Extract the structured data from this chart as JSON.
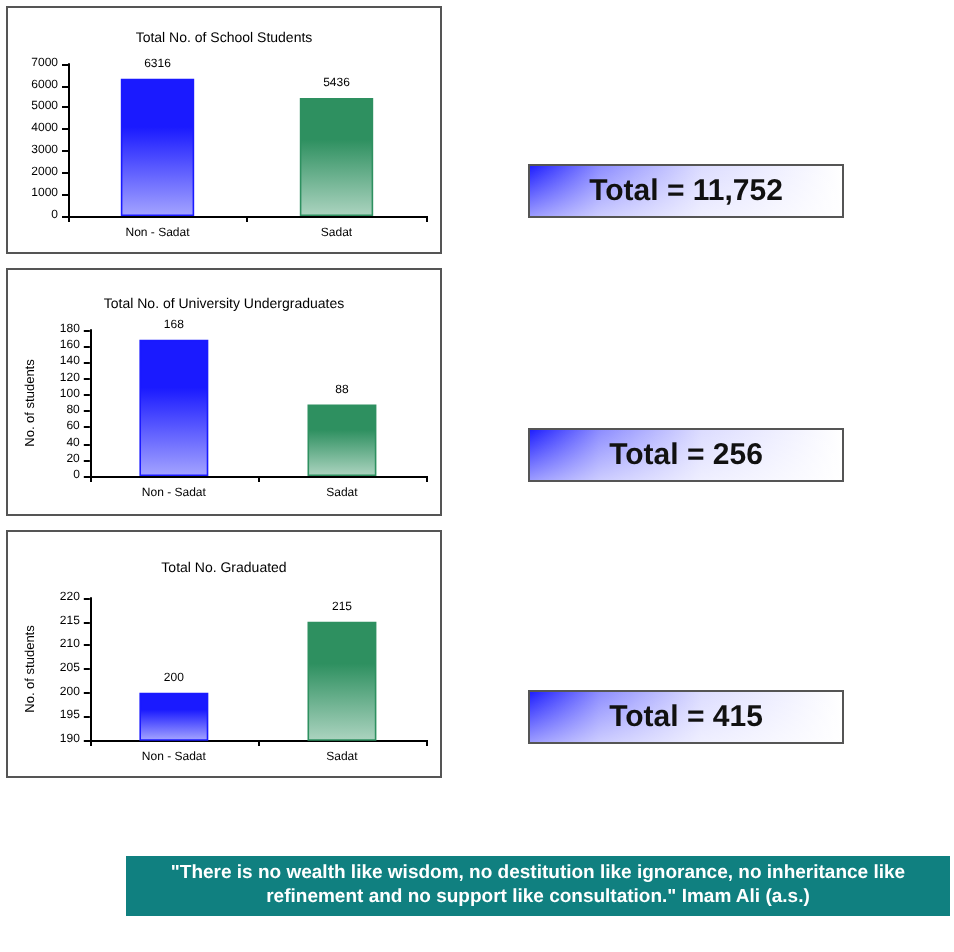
{
  "chart_data": [
    {
      "type": "bar",
      "title": "Total No. of School Students",
      "categories": [
        "Non - Sadat",
        "Sadat"
      ],
      "values": [
        6316,
        5436
      ],
      "colors": [
        "#1a1aff",
        "#2e9060"
      ],
      "ylim": [
        0,
        7000
      ],
      "yticks": [
        0,
        1000,
        2000,
        3000,
        4000,
        5000,
        6000,
        7000
      ],
      "data_labels": true,
      "annotations": [
        "Total = 11,752"
      ]
    },
    {
      "type": "bar",
      "title": "Total No. of University Undergraduates",
      "categories": [
        "Non - Sadat",
        "Sadat"
      ],
      "values": [
        168,
        88
      ],
      "colors": [
        "#1a1aff",
        "#2e9060"
      ],
      "ylabel": "No. of students",
      "ylim": [
        0,
        180
      ],
      "yticks": [
        0,
        20,
        40,
        60,
        80,
        100,
        120,
        140,
        160,
        180
      ],
      "data_labels": true,
      "annotations": [
        "Total = 256"
      ]
    },
    {
      "type": "bar",
      "title": "Total No. Graduated",
      "categories": [
        "Non - Sadat",
        "Sadat"
      ],
      "values": [
        200,
        215
      ],
      "colors": [
        "#1a1aff",
        "#2e9060"
      ],
      "ylabel": "No. of students",
      "ylim": [
        190,
        220
      ],
      "yticks": [
        190,
        195,
        200,
        205,
        210,
        215,
        220
      ],
      "data_labels": true,
      "annotations": [
        "Total = 415"
      ]
    },
    {
      "type": "other",
      "annotations": [
        "\"There is no wealth like wisdom, no destitution like ignorance, no inheritance like refinement and no support like consultation.\" Imam Ali (a.s.)"
      ]
    }
  ]
}
